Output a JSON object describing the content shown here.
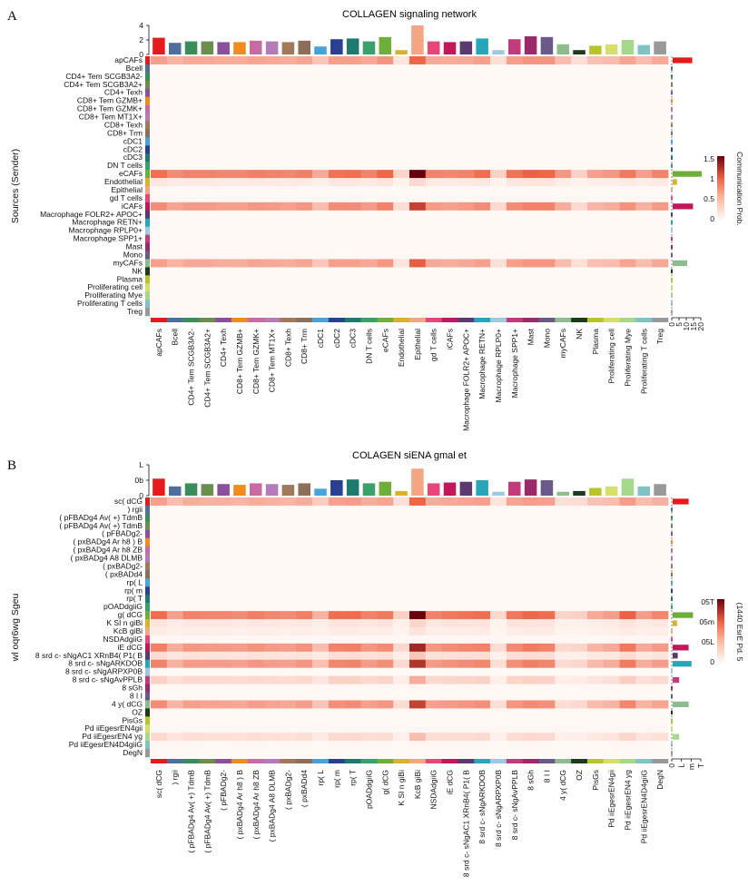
{
  "chart_data": [
    {
      "type": "heatmap",
      "panel": "A",
      "title": "COLLAGEN signaling network",
      "ylabel": "Sources (Sender)",
      "colorbar_title": "Communication Prob.",
      "colorbar_ticks": [
        "1.5",
        "1",
        "0.5",
        "0"
      ],
      "colorbar_range": [
        0,
        1.5
      ],
      "colors": {
        "low": "#fff7f3",
        "mid": "#ef6548",
        "high": "#67000d"
      },
      "top_axis_ticks": [
        "4",
        "2",
        "0"
      ],
      "top_axis_range": [
        0,
        4
      ],
      "right_axis_ticks": [
        "0",
        "5",
        "10",
        "15",
        "20"
      ],
      "right_axis_range": [
        0,
        20
      ],
      "rows": [
        "apCAFs",
        "Bcell",
        "CD4+ Tem SCGB3A2-",
        "CD4+ Tem SCGB3A2+",
        "CD4+ Texh",
        "CD8+ Tem GZMB+",
        "CD8+ Tem GZMK+",
        "CD8+ Tem MT1X+",
        "CD8+ Texh",
        "CD8+ Trm",
        "cDC1",
        "cDC2",
        "cDC3",
        "DN T cells",
        "eCAFs",
        "Endothelial",
        "Epithelial",
        "gd T cells",
        "iCAFs",
        "Macrophage FOLR2+ APOC+",
        "Macrophage RETN+",
        "Macrophage RPLP0+",
        "Macrophage SPP1+",
        "Mast",
        "Mono",
        "myCAFs",
        "NK",
        "Plasma",
        "Proliferating cell",
        "Proliferating Mye",
        "Proliferating T cells",
        "Treg"
      ],
      "columns": [
        "apCAFs",
        "Bcell",
        "CD4+ Tem SCGB3A2-",
        "CD4+ Tem SCGB3A2+",
        "CD4+ Texh",
        "CD8+ Tem GZMB+",
        "CD8+ Tem GZMK+",
        "CD8+ Tem MT1X+",
        "CD8+ Texh",
        "CD8+ Trm",
        "cDC1",
        "cDC2",
        "cDC3",
        "DN T cells",
        "eCAFs",
        "Endothelial",
        "Epithelial",
        "gd T cells",
        "iCAFs",
        "Macrophage FOLR2+ APOC+",
        "Macrophage RETN+",
        "Macrophage RPLP0+",
        "Macrophage SPP1+",
        "Mast",
        "Mono",
        "myCAFs",
        "NK",
        "Plasma",
        "Proliferating cell",
        "Proliferating Mye",
        "Proliferating T cells",
        "Treg"
      ],
      "col_totals": [
        2.3,
        1.6,
        1.8,
        1.8,
        1.7,
        1.7,
        1.9,
        1.8,
        1.7,
        1.9,
        1.1,
        2.1,
        2.2,
        1.8,
        2.4,
        0.6,
        4.1,
        1.8,
        1.7,
        1.8,
        2.2,
        0.6,
        2.1,
        2.5,
        2.4,
        1.4,
        0.6,
        1.2,
        1.4,
        2.0,
        1.3,
        1.8
      ],
      "row_totals": [
        0,
        0,
        0,
        0,
        0,
        0,
        0,
        0,
        0,
        0,
        0,
        0,
        0,
        0,
        0,
        0,
        0,
        0,
        0,
        0,
        0,
        0,
        0,
        0,
        0,
        0,
        0,
        0,
        0,
        0,
        0,
        0
      ],
      "row_totals_nonzero": {
        "apCAFs": 13.5,
        "eCAFs": 20,
        "Endothelial": 3,
        "iCAFs": 14,
        "myCAFs": 10
      },
      "values_note_rows": {
        "apCAFs": [
          0.45,
          0.35,
          0.4,
          0.4,
          0.38,
          0.38,
          0.42,
          0.4,
          0.38,
          0.42,
          0.25,
          0.45,
          0.45,
          0.4,
          0.5,
          0.1,
          0.75,
          0.4,
          0.38,
          0.4,
          0.45,
          0.12,
          0.45,
          0.5,
          0.5,
          0.3,
          0.12,
          0.28,
          0.3,
          0.42,
          0.3,
          0.4
        ],
        "eCAFs": [
          0.7,
          0.55,
          0.6,
          0.6,
          0.58,
          0.58,
          0.62,
          0.6,
          0.58,
          0.62,
          0.4,
          0.68,
          0.7,
          0.6,
          0.75,
          0.18,
          1.5,
          0.6,
          0.58,
          0.6,
          0.7,
          0.2,
          0.68,
          0.78,
          0.75,
          0.5,
          0.2,
          0.45,
          0.5,
          0.65,
          0.45,
          0.6
        ],
        "Endothelial": [
          0.08,
          0.06,
          0.07,
          0.07,
          0.06,
          0.06,
          0.07,
          0.07,
          0.06,
          0.07,
          0.04,
          0.08,
          0.08,
          0.07,
          0.09,
          0.02,
          0.15,
          0.07,
          0.06,
          0.07,
          0.08,
          0.02,
          0.08,
          0.09,
          0.09,
          0.05,
          0.02,
          0.05,
          0.05,
          0.07,
          0.05,
          0.07
        ],
        "iCAFs": [
          0.55,
          0.42,
          0.48,
          0.48,
          0.45,
          0.45,
          0.5,
          0.48,
          0.45,
          0.5,
          0.3,
          0.55,
          0.55,
          0.48,
          0.6,
          0.14,
          1.0,
          0.48,
          0.45,
          0.48,
          0.55,
          0.15,
          0.55,
          0.6,
          0.6,
          0.38,
          0.15,
          0.35,
          0.38,
          0.52,
          0.36,
          0.48
        ],
        "myCAFs": [
          0.45,
          0.35,
          0.4,
          0.4,
          0.38,
          0.38,
          0.42,
          0.4,
          0.38,
          0.42,
          0.25,
          0.45,
          0.45,
          0.4,
          0.5,
          0.1,
          0.8,
          0.4,
          0.38,
          0.4,
          0.45,
          0.12,
          0.45,
          0.5,
          0.5,
          0.3,
          0.12,
          0.28,
          0.3,
          0.42,
          0.3,
          0.4
        ]
      }
    },
    {
      "type": "heatmap",
      "panel": "B",
      "title": "COLAGEN siENA gmal et",
      "ylabel": "wl oqr6wg Sgeu",
      "colorbar_title": "(1440 EsrE Pd. 5",
      "colorbar_ticks": [
        "05T",
        "05m",
        "05L",
        "0"
      ],
      "top_axis_ticks": [
        "L",
        "0b",
        "0"
      ],
      "right_axis_ticks": [
        "0",
        "L",
        "m",
        "T"
      ],
      "rows": [
        "sc( dCG",
        ") rgii",
        "( pFBADg4 Av( +) TdmB",
        "( pFBADg4 Av( +) TdmB",
        "( pFBADg2-",
        "( pxBADg4 Ar h8 ) B",
        "( pxBADg4 Ar h8 ZB",
        "( pxBADg4 A8 DLMB",
        "( pxBADg2-",
        "( pxBADd4",
        "rp( L",
        "rp( m",
        "rp( T",
        "pOADdgiiG",
        "g( dCG",
        "K SI n giBi",
        "KcB giBi",
        "NSDAdgiiG",
        "iE dCG",
        "8 srd c- sNgAC1 XRnB4( P1( B",
        "8 srd c- sNgARKDOB",
        "8 srd c- sNgARPXP0B",
        "8 srd c- sNgAvPPLB",
        "8 sGh",
        "8 I I",
        "4 y( dCG",
        "OZ",
        "PisGs",
        "Pd iiEgesrEN4gii",
        "Pd iiEgesrEN4 yg",
        "Pd iiEgesrEN4D4giiG",
        "DegN"
      ],
      "columns": [
        "sc( dCG",
        ") rgii",
        "( pFBADg4 Av( +) TdmB",
        "( pFBADg4 Av( +) TdmB",
        "( pFBADg2-",
        "( pxBADg4 Ar h8 ) B",
        "( pxBADg4 Ar h8 ZB",
        "( pxBADg4 A8 DLMB",
        "( pxBADg2-",
        "( pxBADd4",
        "rp( L",
        "rp( m",
        "rp( T",
        "pOADdgiiG",
        "g( dCG",
        "K SI n giBi",
        "KcB giBi",
        "NSDAdgiiG",
        "iE dCG",
        "8 srd c- sNgAC1 XRnB4( P1( B",
        "8 srd c- sNgARKDOB",
        "8 srd c- sNgARPXP0B",
        "8 srd c- sNgAvPPLB",
        "8 sGh",
        "8 I I",
        "4 y( dCG",
        "OZ",
        "PisGs",
        "Pd iiEgesrEN4gii",
        "Pd iiEgesrEN4 yg",
        "Pd iiEgesrEN4D4giiG",
        "DegN"
      ],
      "col_totals": [
        2.2,
        1.2,
        1.6,
        1.5,
        1.5,
        1.4,
        1.6,
        1.5,
        1.4,
        1.6,
        0.9,
        2.0,
        2.1,
        1.6,
        1.8,
        0.6,
        3.5,
        1.6,
        1.7,
        1.8,
        2.0,
        0.5,
        1.8,
        2.1,
        2.0,
        0.5,
        0.6,
        1.0,
        1.2,
        2.2,
        1.2,
        1.5
      ],
      "row_totals_nonzero": {
        "sc( dCG": 2.2,
        "g( dCG": 2.8,
        "K SI n giBi": 0.6,
        "iE dCG": 2.2,
        "8 srd c- sNgAC1 XRnB4( P1( B": 0.7,
        "8 srd c- sNgARKDOB": 2.6,
        "8 srd c- sNgAvPPLB": 0.9,
        "4 y( dCG": 2.2,
        "Pd iiEgesrEN4 yg": 0.9
      },
      "values_note_rows": {
        "sc( dCG": [
          0.45,
          0.3,
          0.38,
          0.36,
          0.36,
          0.34,
          0.38,
          0.36,
          0.34,
          0.38,
          0.22,
          0.44,
          0.46,
          0.38,
          0.42,
          0.12,
          0.75,
          0.38,
          0.4,
          0.42,
          0.44,
          0.1,
          0.42,
          0.46,
          0.44,
          0.12,
          0.14,
          0.26,
          0.3,
          0.46,
          0.3,
          0.36
        ],
        "g( dCG": [
          0.72,
          0.45,
          0.6,
          0.58,
          0.58,
          0.55,
          0.62,
          0.58,
          0.55,
          0.62,
          0.35,
          0.7,
          0.72,
          0.6,
          0.66,
          0.2,
          1.5,
          0.6,
          0.65,
          0.68,
          0.7,
          0.16,
          0.66,
          0.74,
          0.7,
          0.18,
          0.2,
          0.4,
          0.46,
          0.78,
          0.46,
          0.58
        ],
        "K SI n giBi": [
          0.1,
          0.06,
          0.08,
          0.08,
          0.08,
          0.07,
          0.08,
          0.08,
          0.07,
          0.08,
          0.05,
          0.1,
          0.1,
          0.08,
          0.09,
          0.03,
          0.18,
          0.08,
          0.09,
          0.09,
          0.1,
          0.02,
          0.09,
          0.1,
          0.1,
          0.03,
          0.03,
          0.05,
          0.06,
          0.1,
          0.06,
          0.08
        ],
        "KcB giBi": [
          0.06,
          0.04,
          0.05,
          0.05,
          0.05,
          0.04,
          0.05,
          0.05,
          0.04,
          0.05,
          0.03,
          0.06,
          0.06,
          0.05,
          0.05,
          0.02,
          0.1,
          0.05,
          0.05,
          0.05,
          0.06,
          0.01,
          0.05,
          0.06,
          0.06,
          0.02,
          0.02,
          0.03,
          0.04,
          0.06,
          0.04,
          0.05
        ],
        "iE dCG": [
          0.62,
          0.38,
          0.5,
          0.48,
          0.48,
          0.46,
          0.52,
          0.48,
          0.46,
          0.52,
          0.3,
          0.6,
          0.62,
          0.5,
          0.56,
          0.16,
          1.2,
          0.5,
          0.55,
          0.58,
          0.6,
          0.14,
          0.56,
          0.64,
          0.6,
          0.16,
          0.18,
          0.34,
          0.4,
          0.66,
          0.4,
          0.48
        ],
        "8 srd c- sNgAC1 XRnB4( P1( B": [
          0.14,
          0.08,
          0.11,
          0.1,
          0.1,
          0.1,
          0.11,
          0.1,
          0.1,
          0.11,
          0.06,
          0.13,
          0.14,
          0.11,
          0.12,
          0.04,
          0.25,
          0.11,
          0.12,
          0.12,
          0.13,
          0.03,
          0.12,
          0.14,
          0.13,
          0.04,
          0.04,
          0.07,
          0.08,
          0.14,
          0.08,
          0.1
        ],
        "8 srd c- sNgARKDOB": [
          0.6,
          0.36,
          0.48,
          0.46,
          0.46,
          0.44,
          0.5,
          0.46,
          0.44,
          0.5,
          0.28,
          0.58,
          0.6,
          0.48,
          0.54,
          0.15,
          1.1,
          0.48,
          0.52,
          0.55,
          0.58,
          0.13,
          0.54,
          0.62,
          0.58,
          0.15,
          0.17,
          0.32,
          0.38,
          0.64,
          0.38,
          0.46
        ],
        "8 srd c- sNgAvPPLB": [
          0.2,
          0.12,
          0.16,
          0.15,
          0.15,
          0.14,
          0.16,
          0.15,
          0.14,
          0.16,
          0.09,
          0.19,
          0.2,
          0.16,
          0.18,
          0.05,
          0.38,
          0.16,
          0.17,
          0.18,
          0.19,
          0.04,
          0.18,
          0.2,
          0.19,
          0.05,
          0.06,
          0.1,
          0.12,
          0.21,
          0.12,
          0.15
        ],
        "4 y( dCG": [
          0.55,
          0.34,
          0.45,
          0.43,
          0.43,
          0.41,
          0.46,
          0.43,
          0.41,
          0.46,
          0.26,
          0.53,
          0.55,
          0.45,
          0.5,
          0.14,
          1.0,
          0.45,
          0.48,
          0.5,
          0.53,
          0.12,
          0.5,
          0.56,
          0.53,
          0.14,
          0.16,
          0.3,
          0.35,
          0.58,
          0.35,
          0.43
        ],
        "Pd iiEgesrEN4 yg": [
          0.16,
          0.1,
          0.13,
          0.12,
          0.12,
          0.11,
          0.13,
          0.12,
          0.11,
          0.13,
          0.07,
          0.15,
          0.16,
          0.13,
          0.14,
          0.04,
          0.3,
          0.13,
          0.14,
          0.14,
          0.15,
          0.03,
          0.14,
          0.16,
          0.15,
          0.04,
          0.05,
          0.08,
          0.1,
          0.17,
          0.1,
          0.12
        ]
      }
    }
  ],
  "panels": [
    {
      "letter": "A"
    },
    {
      "letter": "B"
    }
  ],
  "palette": [
    "#e41a1c",
    "#4e6e9c",
    "#3a8c5a",
    "#6b8e4e",
    "#8c4f9b",
    "#f08c1e",
    "#c96ba3",
    "#b57ab8",
    "#a0785a",
    "#8c6e5a",
    "#4aa3d8",
    "#2a3f8f",
    "#1f7a6e",
    "#3aa06a",
    "#6fae3a",
    "#d8b32a",
    "#f4a582",
    "#e8457a",
    "#c2185b",
    "#5b3a6e",
    "#26a6b8",
    "#9ecae1",
    "#c23b7a",
    "#9b2a6b",
    "#6a5a8c",
    "#8fbc8f",
    "#1b3b1b",
    "#b8c42a",
    "#d6df6a",
    "#a5d88a",
    "#7ec4c4",
    "#999999"
  ]
}
